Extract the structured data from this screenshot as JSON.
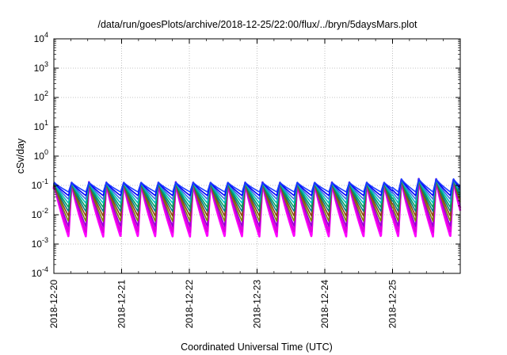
{
  "chart_data": {
    "type": "line",
    "title": "/data/run/goesPlots/archive/2018-12-25/22:00/flux/../bryn/5daysMars.plot",
    "xlabel": "Coordinated Universal Time (UTC)",
    "ylabel": "cSv/day",
    "x_axis": {
      "kind": "date",
      "range": [
        "2018-12-20",
        "2018-12-26"
      ],
      "tick_labels": [
        "2018-12-20",
        "2018-12-21",
        "2018-12-22",
        "2018-12-23",
        "2018-12-24",
        "2018-12-25"
      ]
    },
    "y_axis": {
      "scale": "log",
      "range": [
        0.0001,
        10000
      ],
      "tick_labels": [
        {
          "base": "10",
          "exp": "4"
        },
        {
          "base": "10",
          "exp": "3"
        },
        {
          "base": "10",
          "exp": "2"
        },
        {
          "base": "10",
          "exp": "1"
        },
        {
          "base": "10",
          "exp": "0"
        },
        {
          "base": "10",
          "exp": "-1"
        },
        {
          "base": "10",
          "exp": "-2"
        },
        {
          "base": "10",
          "exp": "-3"
        },
        {
          "base": "10",
          "exp": "-4"
        }
      ]
    },
    "grid": true,
    "legend": "none",
    "pattern": {
      "period_hours": 6.15,
      "peak_value": 0.13,
      "late_peak_value": 0.17,
      "late_from": "2018-12-25"
    },
    "series": [
      {
        "color": "#ff00ff",
        "floor": 0.0018
      },
      {
        "color": "#e000e0",
        "floor": 0.0026
      },
      {
        "color": "#9400d3",
        "floor": 0.004
      },
      {
        "color": "#808000",
        "floor": 0.006
      },
      {
        "color": "#8b4513",
        "floor": 0.009
      },
      {
        "color": "#008080",
        "floor": 0.013
      },
      {
        "color": "#00a060",
        "floor": 0.018
      },
      {
        "color": "#00bfbf",
        "floor": 0.025
      },
      {
        "color": "#4169e1",
        "floor": 0.034
      },
      {
        "color": "#0000ff",
        "floor": 0.045
      },
      {
        "color": "#1e3cff",
        "floor": 0.06
      }
    ]
  }
}
